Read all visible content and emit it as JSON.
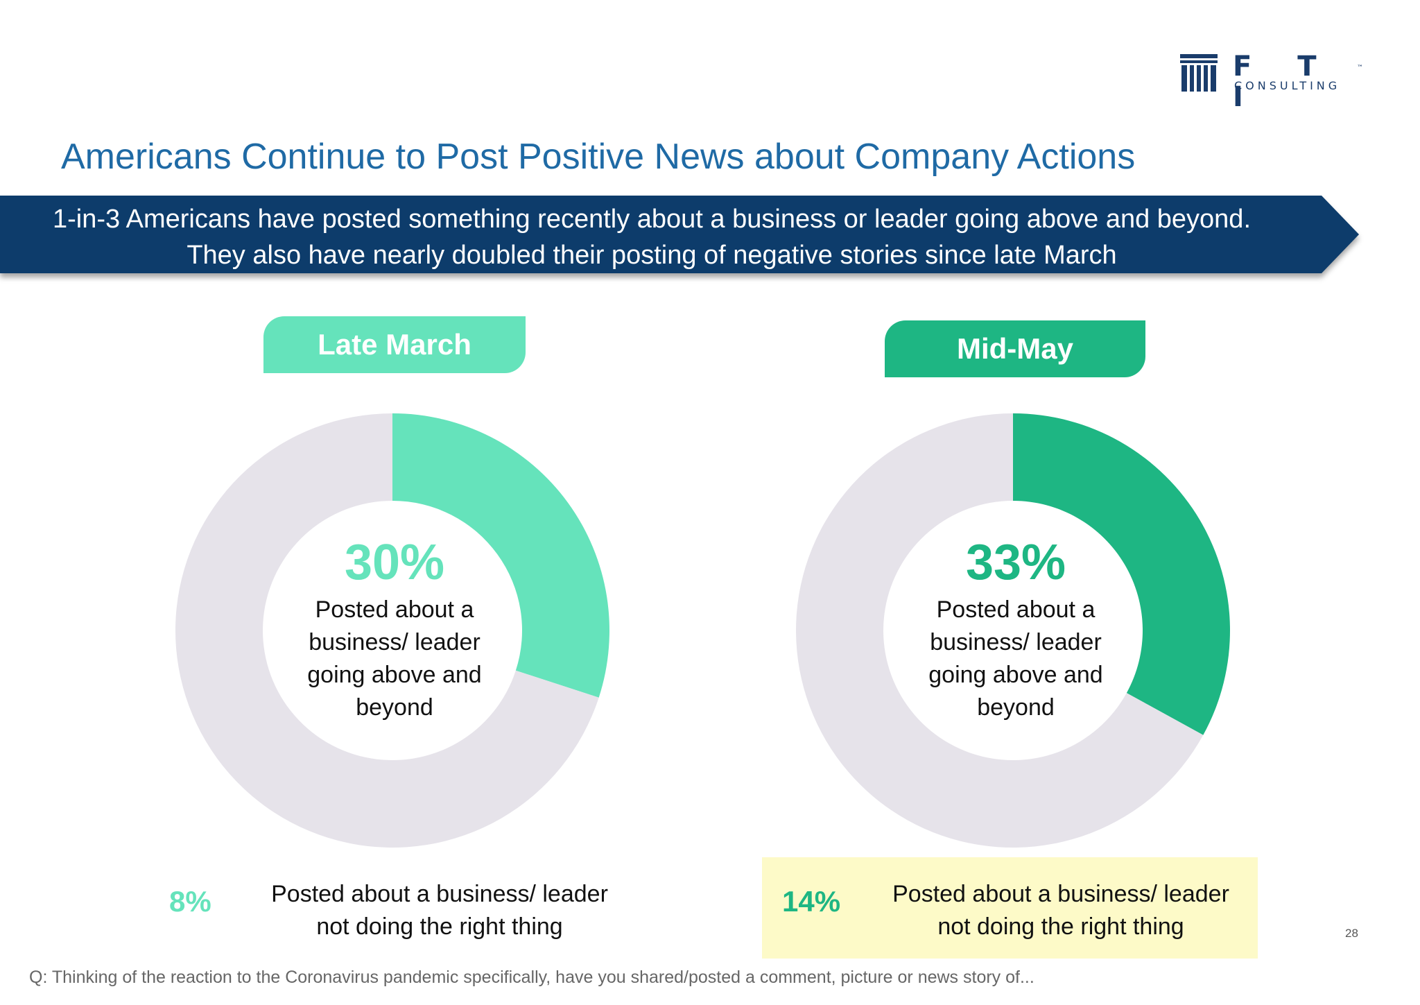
{
  "logo": {
    "letters": "F T I",
    "tm": "™",
    "sub": "CONSULTING"
  },
  "title": "Americans Continue to Post Positive News about Company Actions",
  "banner": {
    "line1": "1-in-3 Americans have posted something recently about a business or leader going above and beyond.",
    "line2": "They also have nearly doubled their posting of negative stories since late March"
  },
  "colors": {
    "late_march": "#65e3bb",
    "mid_may": "#1eb683",
    "remainder": "#e6e3ea",
    "title": "#1f6aa5",
    "banner": "#0d3c6b",
    "highlight_box": "#fdfac8"
  },
  "chart_data": [
    {
      "type": "pie",
      "title": "Late March",
      "categories": [
        "Posted about a business/ leader going above and beyond",
        ""
      ],
      "values": [
        30,
        70
      ],
      "center_value": "30%",
      "center_label": "Posted about a business/ leader going above and beyond",
      "secondary_value": "8%",
      "secondary_label": "Posted about a business/ leader not doing the right thing"
    },
    {
      "type": "pie",
      "title": "Mid-May",
      "categories": [
        "Posted about a business/ leader going above and beyond",
        ""
      ],
      "values": [
        33,
        67
      ],
      "center_value": "33%",
      "center_label": "Posted about a business/ leader going above and beyond",
      "secondary_value": "14%",
      "secondary_label": "Posted about a business/ leader not doing the right thing"
    }
  ],
  "labels": {
    "late_march_tab": "Late March",
    "mid_may_tab": "Mid-May",
    "late_march_pct": "30%",
    "mid_may_pct": "33%",
    "center_line1": "Posted about a",
    "center_line2": "business/ leader",
    "center_line3": "going above and",
    "center_line4": "beyond",
    "late_march_neg_pct": "8%",
    "mid_may_neg_pct": "14%",
    "neg_line1": "Posted about a business/ leader",
    "neg_line2": "not doing the right thing"
  },
  "page_number": "28",
  "footnote": "Q: Thinking of the reaction to the Coronavirus pandemic specifically, have you shared/posted a comment, picture or news story of..."
}
